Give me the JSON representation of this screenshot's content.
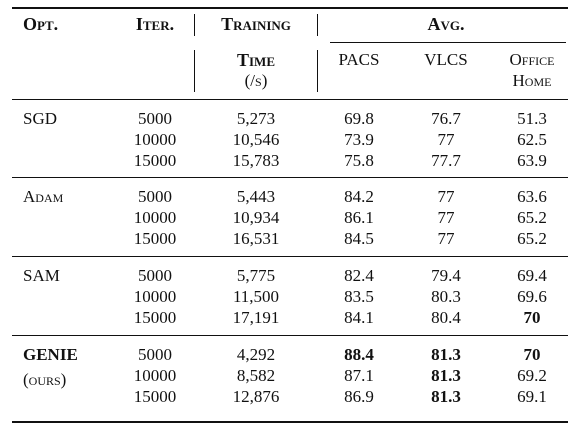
{
  "headers": {
    "opt": "Opt.",
    "iter": "Iter.",
    "training": "Training",
    "training_sub1": "Time",
    "training_sub2": "(/s)",
    "avg": "Avg.",
    "pacs": "PACS",
    "vlcs": "VLCS",
    "office1": "Office",
    "office2": "Home"
  },
  "groups": [
    {
      "opt": "SGD",
      "opt_sub": "",
      "rows": [
        {
          "iter": "5000",
          "time": "5,273",
          "pacs": "69.8",
          "vlcs": "76.7",
          "office": "51.3",
          "bold": []
        },
        {
          "iter": "10000",
          "time": "10,546",
          "pacs": "73.9",
          "vlcs": "77",
          "office": "62.5",
          "bold": []
        },
        {
          "iter": "15000",
          "time": "15,783",
          "pacs": "75.8",
          "vlcs": "77.7",
          "office": "63.9",
          "bold": []
        }
      ]
    },
    {
      "opt": "Adam",
      "opt_sub": "",
      "rows": [
        {
          "iter": "5000",
          "time": "5,443",
          "pacs": "84.2",
          "vlcs": "77",
          "office": "63.6",
          "bold": []
        },
        {
          "iter": "10000",
          "time": "10,934",
          "pacs": "86.1",
          "vlcs": "77",
          "office": "65.2",
          "bold": []
        },
        {
          "iter": "15000",
          "time": "16,531",
          "pacs": "84.5",
          "vlcs": "77",
          "office": "65.2",
          "bold": []
        }
      ]
    },
    {
      "opt": "SAM",
      "opt_sub": "",
      "rows": [
        {
          "iter": "5000",
          "time": "5,775",
          "pacs": "82.4",
          "vlcs": "79.4",
          "office": "69.4",
          "bold": []
        },
        {
          "iter": "10000",
          "time": "11,500",
          "pacs": "83.5",
          "vlcs": "80.3",
          "office": "69.6",
          "bold": []
        },
        {
          "iter": "15000",
          "time": "17,191",
          "pacs": "84.1",
          "vlcs": "80.4",
          "office": "70",
          "bold": [
            "office"
          ]
        }
      ]
    },
    {
      "opt": "GENIE",
      "opt_sub": "(ours)",
      "rows": [
        {
          "iter": "5000",
          "time": "4,292",
          "pacs": "88.4",
          "vlcs": "81.3",
          "office": "70",
          "bold": [
            "pacs",
            "vlcs",
            "office"
          ]
        },
        {
          "iter": "10000",
          "time": "8,582",
          "pacs": "87.1",
          "vlcs": "81.3",
          "office": "69.2",
          "bold": [
            "vlcs"
          ]
        },
        {
          "iter": "15000",
          "time": "12,876",
          "pacs": "86.9",
          "vlcs": "81.3",
          "office": "69.1",
          "bold": [
            "vlcs"
          ]
        }
      ]
    }
  ]
}
